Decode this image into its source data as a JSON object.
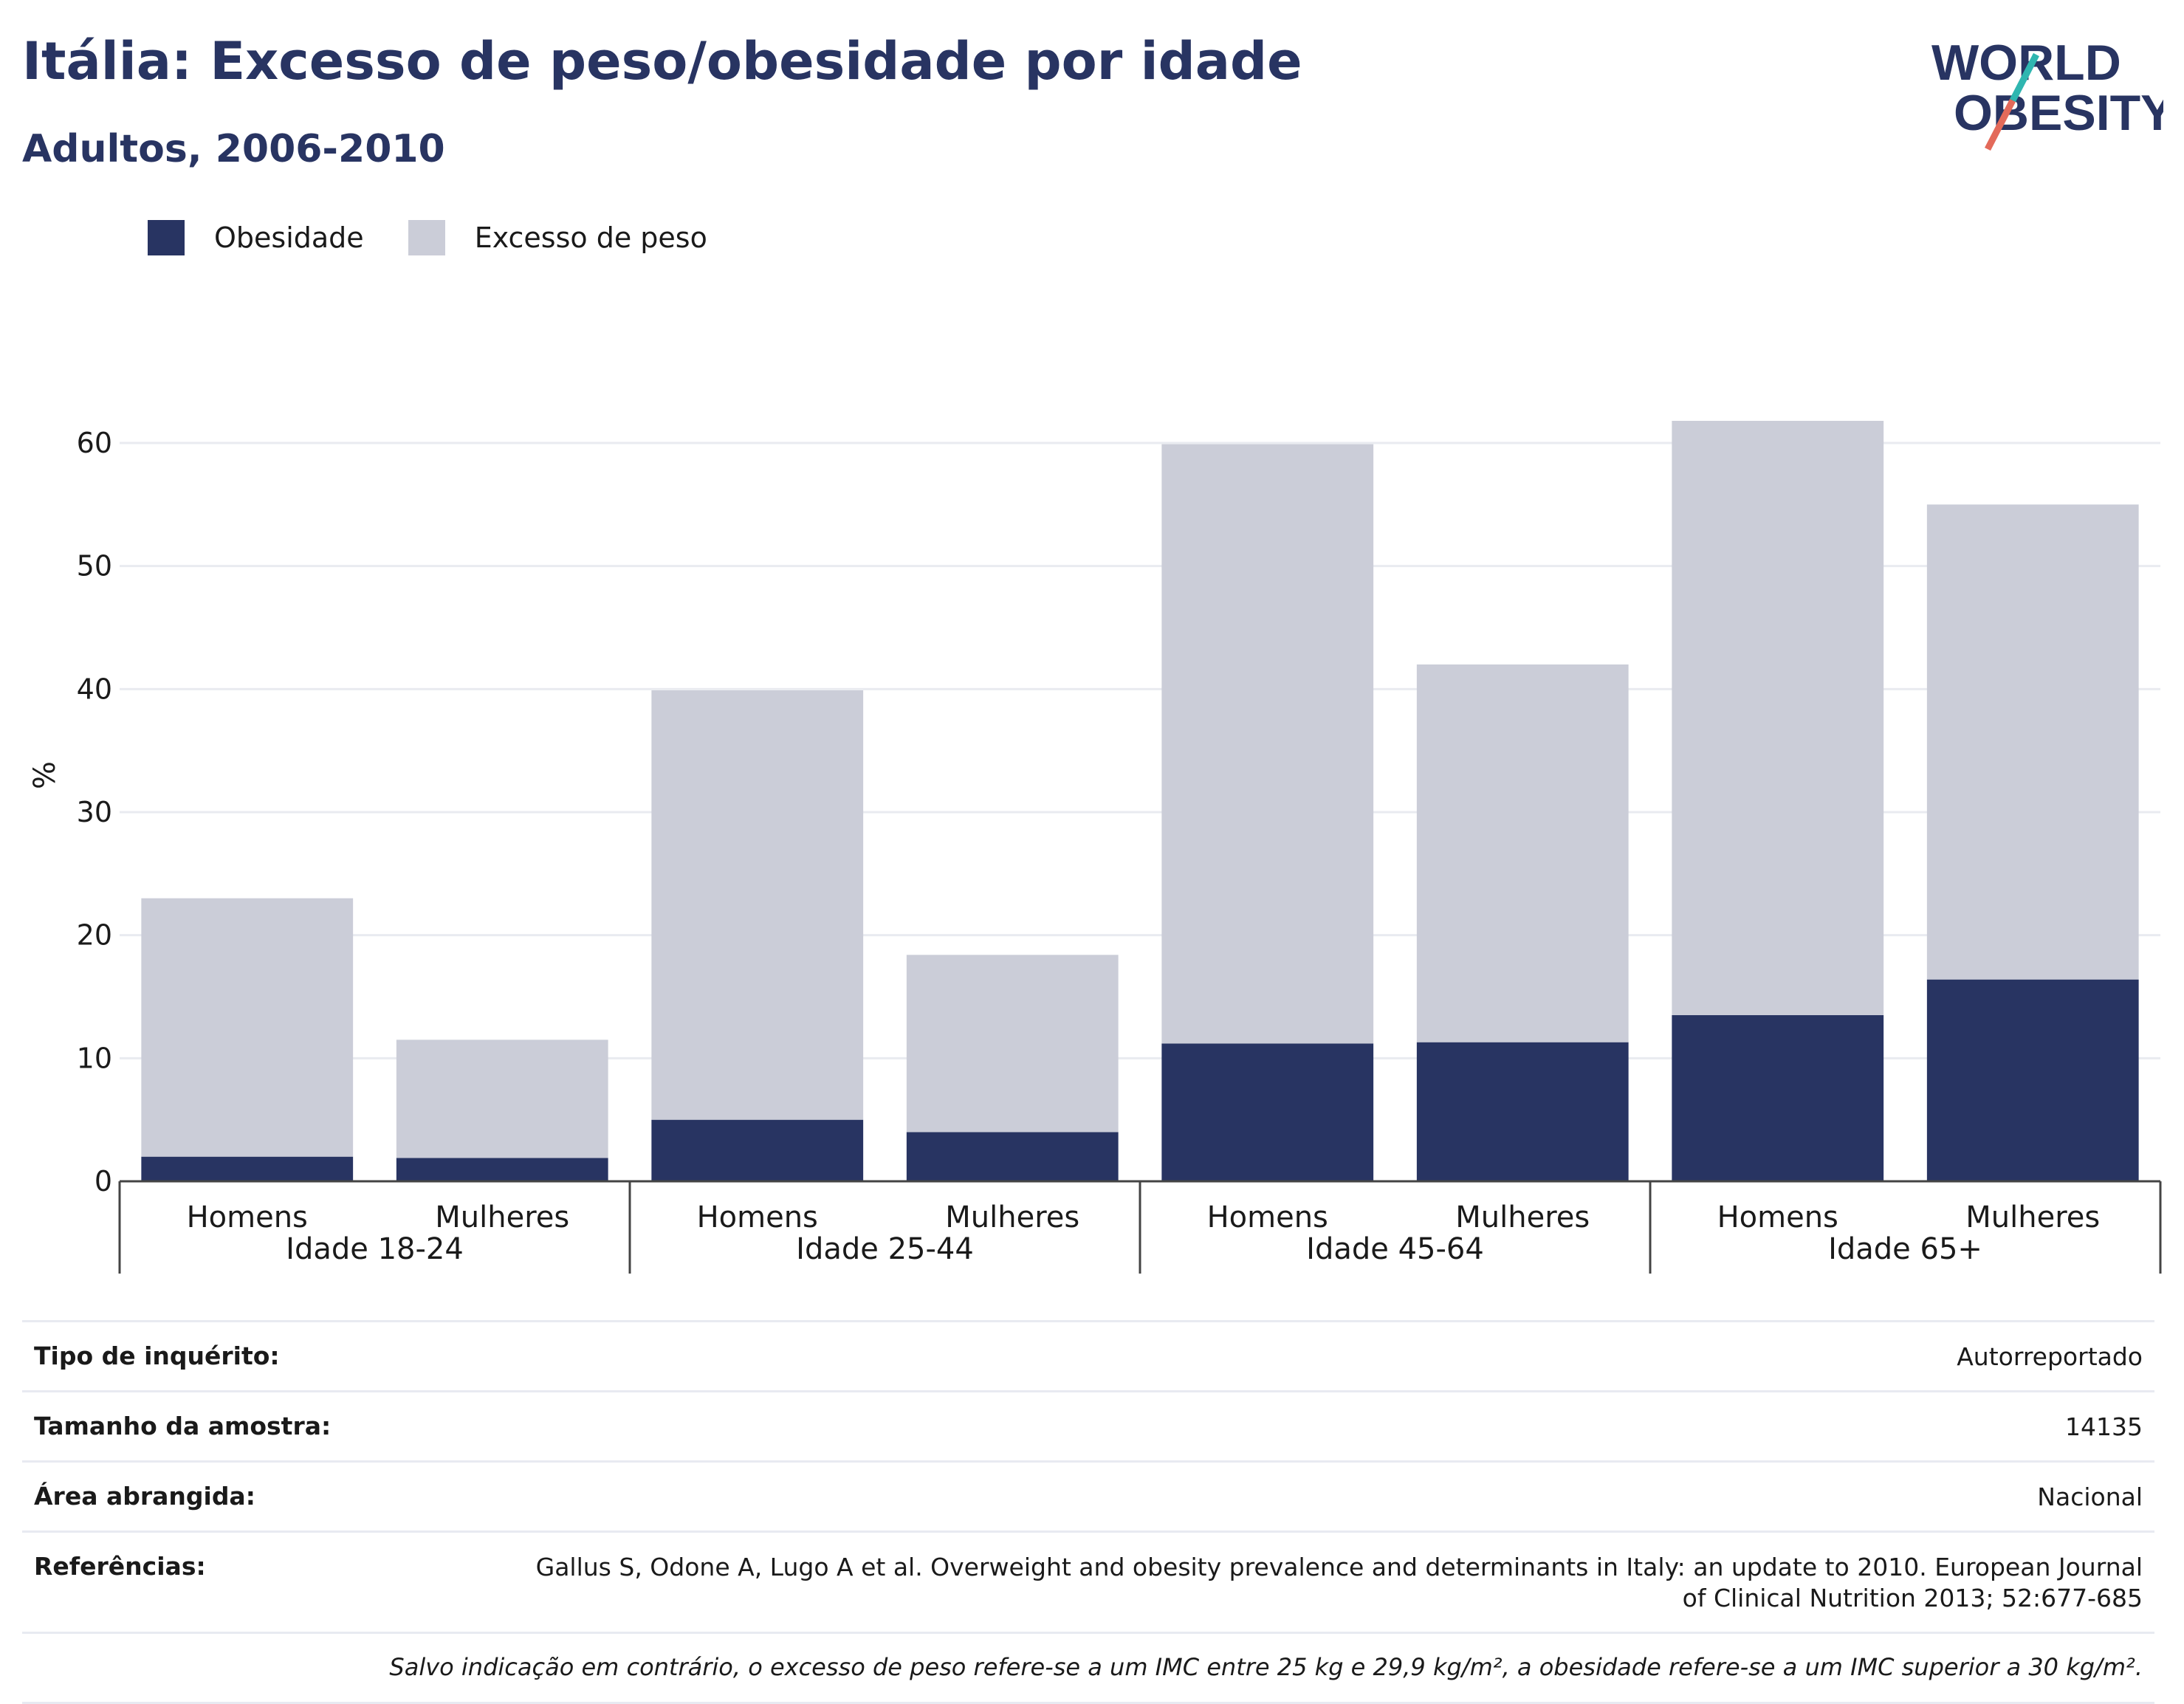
{
  "header": {
    "title": "Itália: Excesso de peso/obesidade por idade",
    "subtitle": "Adultos, 2006-2010"
  },
  "logo": {
    "line1": "WORLD",
    "line2": "OBESITY"
  },
  "legend": {
    "items": [
      {
        "label": "Obesidade",
        "color": "#283462"
      },
      {
        "label": "Excesso de peso",
        "color": "#cbcdd8"
      }
    ]
  },
  "chart_data": {
    "type": "bar",
    "stacked": true,
    "ylabel": "%",
    "ylim": [
      0,
      66
    ],
    "yticks": [
      0,
      10,
      20,
      30,
      40,
      50,
      60
    ],
    "grid": true,
    "legend_position": "top-left",
    "groups": [
      "Idade 18-24",
      "Idade 25-44",
      "Idade 45-64",
      "Idade 65+"
    ],
    "categories": [
      "Homens",
      "Mulheres",
      "Homens",
      "Mulheres",
      "Homens",
      "Mulheres",
      "Homens",
      "Mulheres"
    ],
    "series": [
      {
        "name": "Obesidade",
        "color": "#283462",
        "values": [
          2.0,
          1.9,
          5.0,
          4.0,
          11.2,
          11.3,
          13.5,
          16.4
        ]
      },
      {
        "name": "Excesso de peso",
        "color": "#cbcdd8",
        "values": [
          21.0,
          9.6,
          34.9,
          14.4,
          48.7,
          30.7,
          48.3,
          38.6
        ]
      }
    ]
  },
  "info": {
    "rows": [
      {
        "label": "Tipo de inquérito:",
        "value": "Autorreportado"
      },
      {
        "label": "Tamanho da amostra:",
        "value": "14135"
      },
      {
        "label": "Área abrangida:",
        "value": "Nacional"
      },
      {
        "label": "Referências:",
        "value": "Gallus S, Odone A, Lugo A et al. Overweight and obesity prevalence and determinants in Italy: an update to 2010. European Journal of Clinical Nutrition 2013; 52:677-685"
      }
    ],
    "note": "Salvo indicação em contrário, o excesso de peso refere-se a um IMC entre 25 kg e 29,9 kg/m², a obesidade refere-se a um IMC superior a 30 kg/m²."
  }
}
